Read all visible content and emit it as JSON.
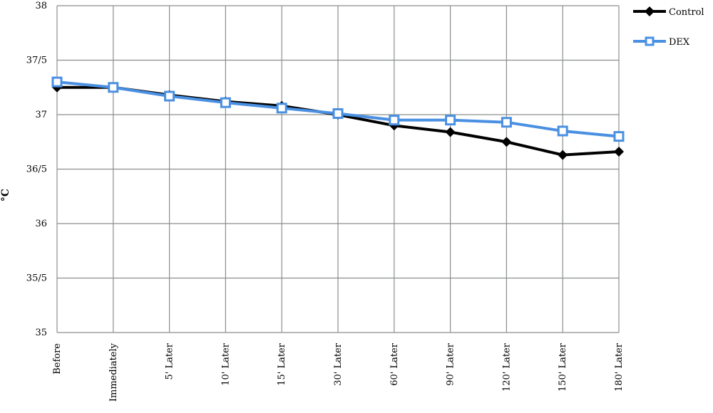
{
  "chart_data": {
    "type": "line",
    "categories": [
      "Before",
      "Immediately",
      "5' Later",
      "10' Later",
      "15' Later",
      "30' Later",
      "60' Later",
      "90' Later",
      "120' Later",
      "150' Later",
      "180' Later"
    ],
    "series": [
      {
        "name": "Control",
        "values": [
          37.25,
          37.25,
          37.18,
          37.12,
          37.08,
          37.0,
          36.9,
          36.84,
          36.75,
          36.63,
          36.66
        ],
        "color": "#000000",
        "marker": "diamond-filled"
      },
      {
        "name": "DEX",
        "values": [
          37.3,
          37.25,
          37.17,
          37.11,
          37.06,
          37.01,
          36.95,
          36.95,
          36.93,
          36.85,
          36.8
        ],
        "color": "#4a90e2",
        "marker": "square-open"
      }
    ],
    "ylabel": "°C",
    "xlabel": "",
    "ylim": [
      35,
      38
    ],
    "yticks": [
      35,
      35.5,
      36,
      36.5,
      37,
      37.5,
      38
    ],
    "ytick_labels": [
      "35",
      "35/5",
      "36",
      "36/5",
      "37",
      "37/5",
      "38"
    ],
    "grid": true,
    "legend": "top-right"
  }
}
